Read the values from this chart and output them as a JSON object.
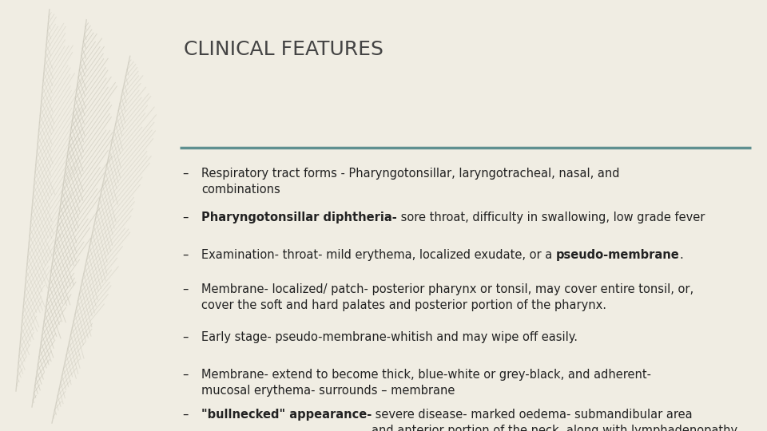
{
  "title": "CLINICAL FEATURES",
  "background_color": "#f0ede3",
  "title_color": "#444444",
  "title_fontsize": 18,
  "line_color": "#5f9090",
  "text_color": "#222222",
  "text_fontsize": 10.5,
  "bullet_char": "–",
  "items": [
    {
      "parts": [
        {
          "text": "Respiratory tract forms - Pharyngotonsillar, laryngotracheal, nasal, and\ncombinations",
          "bold": false
        }
      ]
    },
    {
      "parts": [
        {
          "text": "Pharyngotonsillar diphtheria-",
          "bold": true
        },
        {
          "text": " sore throat, difficulty in swallowing, low grade fever",
          "bold": false
        }
      ]
    },
    {
      "parts": [
        {
          "text": "Examination- throat- mild erythema, localized exudate, or a ",
          "bold": false
        },
        {
          "text": "pseudo-membrane",
          "bold": true
        },
        {
          "text": ".",
          "bold": false
        }
      ]
    },
    {
      "parts": [
        {
          "text": "Membrane- localized/ patch- posterior pharynx or tonsil, may cover entire tonsil, or,\ncover the soft and hard palates and posterior portion of the pharynx.",
          "bold": false
        }
      ]
    },
    {
      "parts": [
        {
          "text": "Early stage- pseudo-membrane-whitish and may wipe off easily.",
          "bold": false
        }
      ]
    },
    {
      "parts": [
        {
          "text": "Membrane- extend to become thick, blue-white or grey-black, and adherent-\nmucosal erythema- surrounds – membrane",
          "bold": false
        }
      ]
    },
    {
      "parts": [
        {
          "text": "\"bullnecked\" appearance-",
          "bold": true
        },
        {
          "text": " severe disease- marked oedema- submandibular area\nand anterior portion of the neck, along with lymphadenopathy",
          "bold": false
        }
      ]
    }
  ]
}
